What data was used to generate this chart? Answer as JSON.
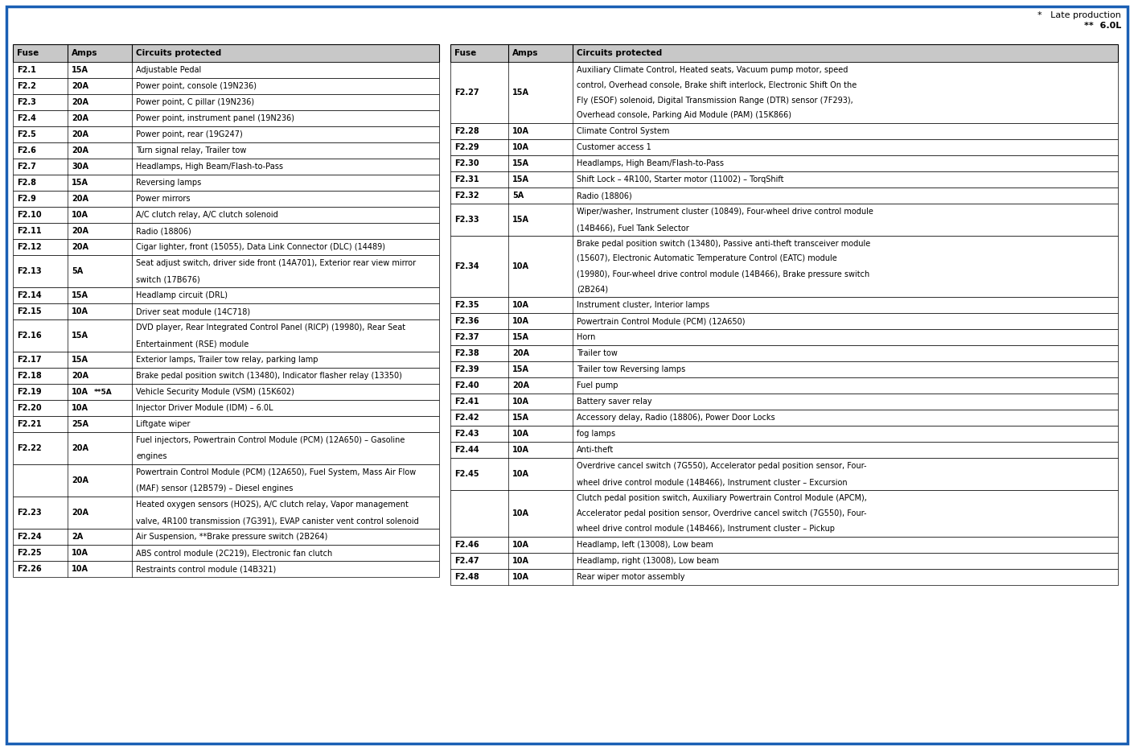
{
  "bg_color": "#FFFFFF",
  "border_color": "#1a5fb4",
  "header_bg": "#C8C8C8",
  "note_line1": "*   Late production",
  "note_line2": "**  6.0L",
  "left_table": {
    "headers": [
      "Fuse",
      "Amps",
      "Circuits protected"
    ],
    "rows": [
      {
        "fuse": "F2.1",
        "amps": "15A",
        "amps2": "",
        "circuit": "Adjustable Pedal",
        "lines": 1
      },
      {
        "fuse": "F2.2",
        "amps": "20A",
        "amps2": "",
        "circuit": "Power point, console (19N236)",
        "lines": 1
      },
      {
        "fuse": "F2.3",
        "amps": "20A",
        "amps2": "",
        "circuit": "Power point, C pillar (19N236)",
        "lines": 1
      },
      {
        "fuse": "F2.4",
        "amps": "20A",
        "amps2": "",
        "circuit": "Power point, instrument panel (19N236)",
        "lines": 1
      },
      {
        "fuse": "F2.5",
        "amps": "20A",
        "amps2": "",
        "circuit": "Power point, rear (19G247)",
        "lines": 1
      },
      {
        "fuse": "F2.6",
        "amps": "20A",
        "amps2": "",
        "circuit": "Turn signal relay, Trailer tow",
        "lines": 1
      },
      {
        "fuse": "F2.7",
        "amps": "30A",
        "amps2": "",
        "circuit": "Headlamps, High Beam/Flash-to-Pass",
        "lines": 1
      },
      {
        "fuse": "F2.8",
        "amps": "15A",
        "amps2": "",
        "circuit": "Reversing lamps",
        "lines": 1
      },
      {
        "fuse": "F2.9",
        "amps": "20A",
        "amps2": "",
        "circuit": "Power mirrors",
        "lines": 1
      },
      {
        "fuse": "F2.10",
        "amps": "10A",
        "amps2": "",
        "circuit": "A/C clutch relay, A/C clutch solenoid",
        "lines": 1
      },
      {
        "fuse": "F2.11",
        "amps": "20A",
        "amps2": "",
        "circuit": "Radio (18806)",
        "lines": 1
      },
      {
        "fuse": "F2.12",
        "amps": "20A",
        "amps2": "",
        "circuit": "Cigar lighter, front (15055), Data Link Connector (DLC) (14489)",
        "lines": 1
      },
      {
        "fuse": "F2.13",
        "amps": "5A",
        "amps2": "",
        "circuit": "Seat adjust switch, driver side front (14A701), Exterior rear view mirror\nswitch (17B676)",
        "lines": 2
      },
      {
        "fuse": "F2.14",
        "amps": "15A",
        "amps2": "",
        "circuit": "Headlamp circuit (DRL)",
        "lines": 1
      },
      {
        "fuse": "F2.15",
        "amps": "10A",
        "amps2": "",
        "circuit": "Driver seat module (14C718)",
        "lines": 1
      },
      {
        "fuse": "F2.16",
        "amps": "15A",
        "amps2": "",
        "circuit": "DVD player, Rear Integrated Control Panel (RICP) (19980), Rear Seat\nEntertainment (RSE) module",
        "lines": 2
      },
      {
        "fuse": "F2.17",
        "amps": "15A",
        "amps2": "",
        "circuit": "Exterior lamps, Trailer tow relay, parking lamp",
        "lines": 1
      },
      {
        "fuse": "F2.18",
        "amps": "20A",
        "amps2": "",
        "circuit": "Brake pedal position switch (13480), Indicator flasher relay (13350)",
        "lines": 1
      },
      {
        "fuse": "F2.19",
        "amps": "10A",
        "amps2": "**5A",
        "circuit": "Vehicle Security Module (VSM) (15K602)",
        "lines": 1
      },
      {
        "fuse": "F2.20",
        "amps": "10A",
        "amps2": "",
        "circuit": "Injector Driver Module (IDM) – 6.0L",
        "lines": 1
      },
      {
        "fuse": "F2.21",
        "amps": "25A",
        "amps2": "",
        "circuit": "Liftgate wiper",
        "lines": 1
      },
      {
        "fuse": "F2.22",
        "amps": "20A",
        "amps2": "",
        "circuit": "Fuel injectors, Powertrain Control Module (PCM) (12A650) – Gasoline\nengines",
        "lines": 2
      },
      {
        "fuse": "",
        "amps": "20A",
        "amps2": "",
        "circuit": "Powertrain Control Module (PCM) (12A650), Fuel System, Mass Air Flow\n(MAF) sensor (12B579) – Diesel engines",
        "lines": 2
      },
      {
        "fuse": "F2.23",
        "amps": "20A",
        "amps2": "",
        "circuit": "Heated oxygen sensors (HO2S), A/C clutch relay, Vapor management\nvalve, 4R100 transmission (7G391), EVAP canister vent control solenoid",
        "lines": 2
      },
      {
        "fuse": "F2.24",
        "amps": "2A",
        "amps2": "",
        "circuit": "Air Suspension, **Brake pressure switch (2B264)",
        "lines": 1
      },
      {
        "fuse": "F2.25",
        "amps": "10A",
        "amps2": "",
        "circuit": "ABS control module (2C219), Electronic fan clutch",
        "lines": 1
      },
      {
        "fuse": "F2.26",
        "amps": "10A",
        "amps2": "",
        "circuit": "Restraints control module (14B321)",
        "lines": 1
      }
    ]
  },
  "right_table": {
    "headers": [
      "Fuse",
      "Amps",
      "Circuits protected"
    ],
    "rows": [
      {
        "fuse": "F2.27",
        "amps": "15A",
        "amps2": "",
        "circuit": "Auxiliary Climate Control, Heated seats, Vacuum pump motor, speed\ncontrol, Overhead console, Brake shift interlock, Electronic Shift On the\nFly (ESOF) solenoid, Digital Transmission Range (DTR) sensor (7F293),\nOverhead console, Parking Aid Module (PAM) (15K866)",
        "lines": 4
      },
      {
        "fuse": "F2.28",
        "amps": "10A",
        "amps2": "",
        "circuit": "Climate Control System",
        "lines": 1
      },
      {
        "fuse": "F2.29",
        "amps": "10A",
        "amps2": "",
        "circuit": "Customer access 1",
        "lines": 1
      },
      {
        "fuse": "F2.30",
        "amps": "15A",
        "amps2": "",
        "circuit": "Headlamps, High Beam/Flash-to-Pass",
        "lines": 1
      },
      {
        "fuse": "F2.31",
        "amps": "15A",
        "amps2": "",
        "circuit": "Shift Lock – 4R100, Starter motor (11002) – TorqShift",
        "lines": 1
      },
      {
        "fuse": "F2.32",
        "amps": "5A",
        "amps2": "",
        "circuit": "Radio (18806)",
        "lines": 1
      },
      {
        "fuse": "F2.33",
        "amps": "15A",
        "amps2": "",
        "circuit": "Wiper/washer, Instrument cluster (10849), Four-wheel drive control module\n(14B466), Fuel Tank Selector",
        "lines": 2
      },
      {
        "fuse": "F2.34",
        "amps": "10A",
        "amps2": "",
        "circuit": "Brake pedal position switch (13480), Passive anti-theft transceiver module\n(15607), Electronic Automatic Temperature Control (EATC) module\n(19980), Four-wheel drive control module (14B466), Brake pressure switch\n(2B264)",
        "lines": 4
      },
      {
        "fuse": "F2.35",
        "amps": "10A",
        "amps2": "",
        "circuit": "Instrument cluster, Interior lamps",
        "lines": 1
      },
      {
        "fuse": "F2.36",
        "amps": "10A",
        "amps2": "",
        "circuit": "Powertrain Control Module (PCM) (12A650)",
        "lines": 1
      },
      {
        "fuse": "F2.37",
        "amps": "15A",
        "amps2": "",
        "circuit": "Horn",
        "lines": 1
      },
      {
        "fuse": "F2.38",
        "amps": "20A",
        "amps2": "",
        "circuit": "Trailer tow",
        "lines": 1
      },
      {
        "fuse": "F2.39",
        "amps": "15A",
        "amps2": "",
        "circuit": "Trailer tow Reversing lamps",
        "lines": 1
      },
      {
        "fuse": "F2.40",
        "amps": "20A",
        "amps2": "",
        "circuit": "Fuel pump",
        "lines": 1
      },
      {
        "fuse": "F2.41",
        "amps": "10A",
        "amps2": "",
        "circuit": "Battery saver relay",
        "lines": 1
      },
      {
        "fuse": "F2.42",
        "amps": "15A",
        "amps2": "",
        "circuit": "Accessory delay, Radio (18806), Power Door Locks",
        "lines": 1
      },
      {
        "fuse": "F2.43",
        "amps": "10A",
        "amps2": "",
        "circuit": "fog lamps",
        "lines": 1
      },
      {
        "fuse": "F2.44",
        "amps": "10A",
        "amps2": "",
        "circuit": "Anti-theft",
        "lines": 1
      },
      {
        "fuse": "F2.45",
        "amps": "10A",
        "amps2": "",
        "circuit": "Overdrive cancel switch (7G550), Accelerator pedal position sensor, Four-\nwheel drive control module (14B466), Instrument cluster – Excursion",
        "lines": 2
      },
      {
        "fuse": "",
        "amps": "10A",
        "amps2": "",
        "circuit": "Clutch pedal position switch, Auxiliary Powertrain Control Module (APCM),\nAccelerator pedal position sensor, Overdrive cancel switch (7G550), Four-\nwheel drive control module (14B466), Instrument cluster – Pickup",
        "lines": 3
      },
      {
        "fuse": "F2.46",
        "amps": "10A",
        "amps2": "",
        "circuit": "Headlamp, left (13008), Low beam",
        "lines": 1
      },
      {
        "fuse": "F2.47",
        "amps": "10A",
        "amps2": "",
        "circuit": "Headlamp, right (13008), Low beam",
        "lines": 1
      },
      {
        "fuse": "F2.48",
        "amps": "10A",
        "amps2": "",
        "circuit": "Rear wiper motor assembly",
        "lines": 1
      }
    ]
  }
}
